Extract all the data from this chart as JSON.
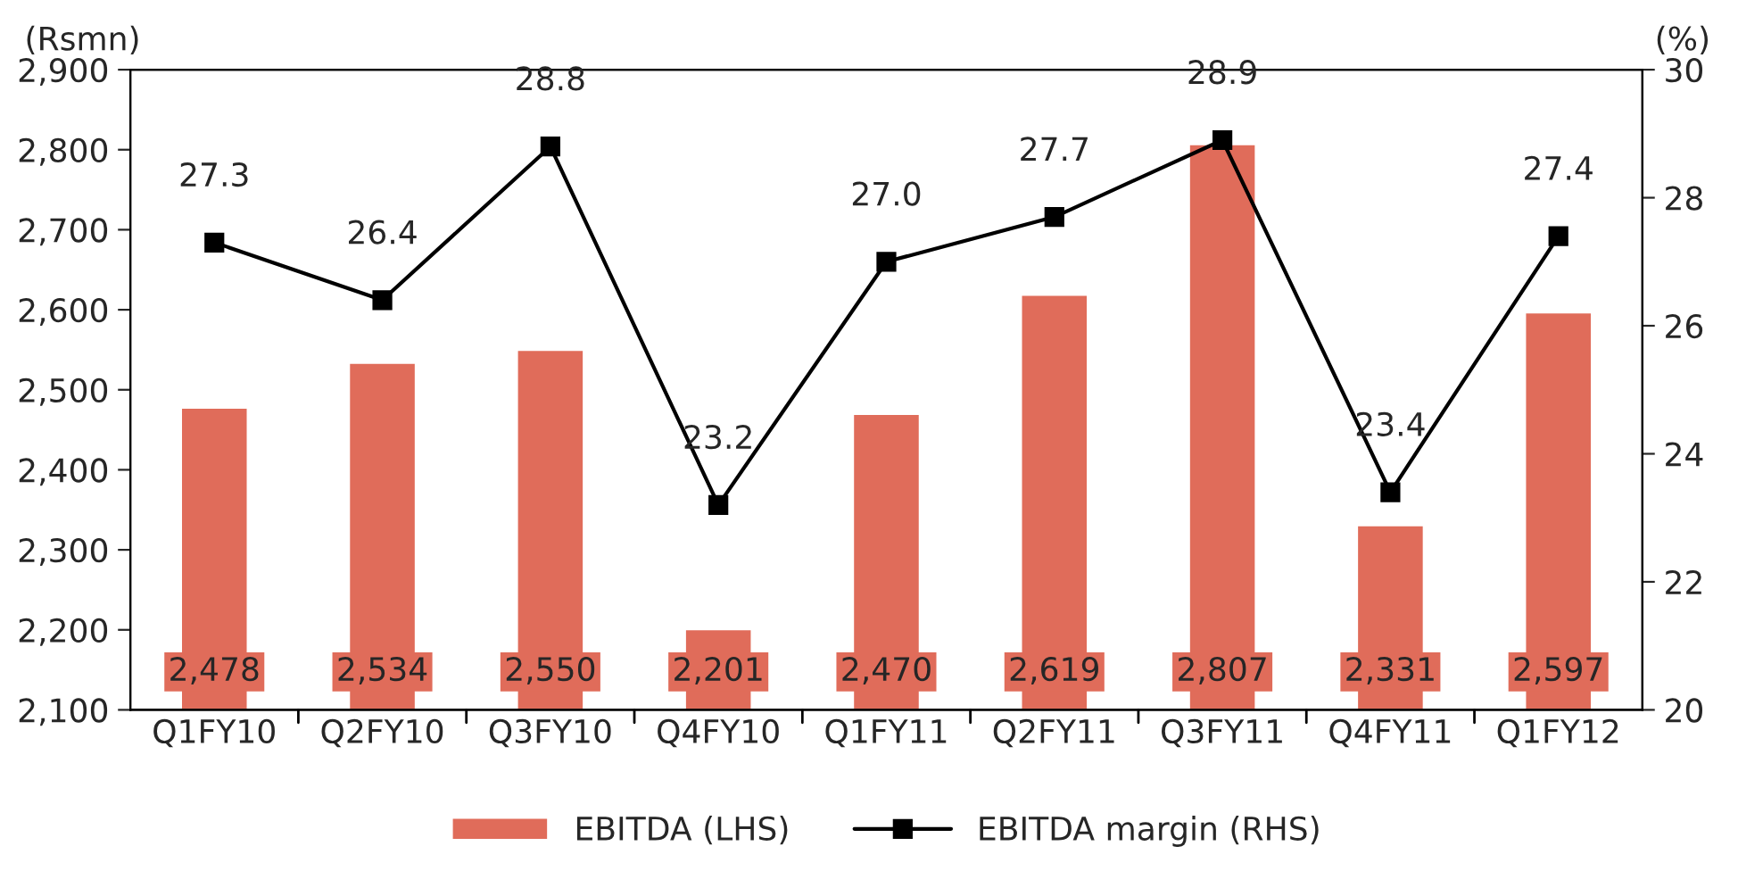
{
  "chart_data": {
    "type": "bar",
    "categories": [
      "Q1FY10",
      "Q2FY10",
      "Q3FY10",
      "Q4FY10",
      "Q1FY11",
      "Q2FY11",
      "Q3FY11",
      "Q4FY11",
      "Q1FY12"
    ],
    "ylabel": "(Rsmn)",
    "y2label": "(%)",
    "series": [
      {
        "name": "EBITDA (LHS)",
        "color": "#e06c5a",
        "values": [
          2478,
          2534,
          2550,
          2201,
          2470,
          2619,
          2807,
          2331,
          2597
        ],
        "value_labels": [
          "2,478",
          "2,534",
          "2,550",
          "2,201",
          "2,470",
          "2,619",
          "2,807",
          "2,331",
          "2,597"
        ]
      },
      {
        "name": "EBITDA margin (RHS)",
        "type": "line",
        "axis": "y2",
        "color": "#000000",
        "marker": "square",
        "line_style": "solid",
        "values": [
          27.3,
          26.4,
          28.8,
          23.2,
          27.0,
          27.7,
          28.9,
          23.4,
          27.4
        ],
        "value_labels": [
          "27.3",
          "26.4",
          "28.8",
          "23.2",
          "27.0",
          "27.7",
          "28.9",
          "23.4",
          "27.4"
        ]
      }
    ],
    "ylim": [
      2100,
      2900
    ],
    "yticks": [
      {
        "value": 2100,
        "label": "2,100"
      },
      {
        "value": 2200,
        "label": "2,200"
      },
      {
        "value": 2300,
        "label": "2,300"
      },
      {
        "value": 2400,
        "label": "2,400"
      },
      {
        "value": 2500,
        "label": "2,500"
      },
      {
        "value": 2600,
        "label": "2,600"
      },
      {
        "value": 2700,
        "label": "2,700"
      },
      {
        "value": 2800,
        "label": "2,800"
      },
      {
        "value": 2900,
        "label": "2,900"
      }
    ],
    "y2lim": [
      20,
      30
    ],
    "y2ticks": [
      20,
      22,
      24,
      26,
      28,
      30
    ],
    "legend": "bottom",
    "grid": false
  }
}
